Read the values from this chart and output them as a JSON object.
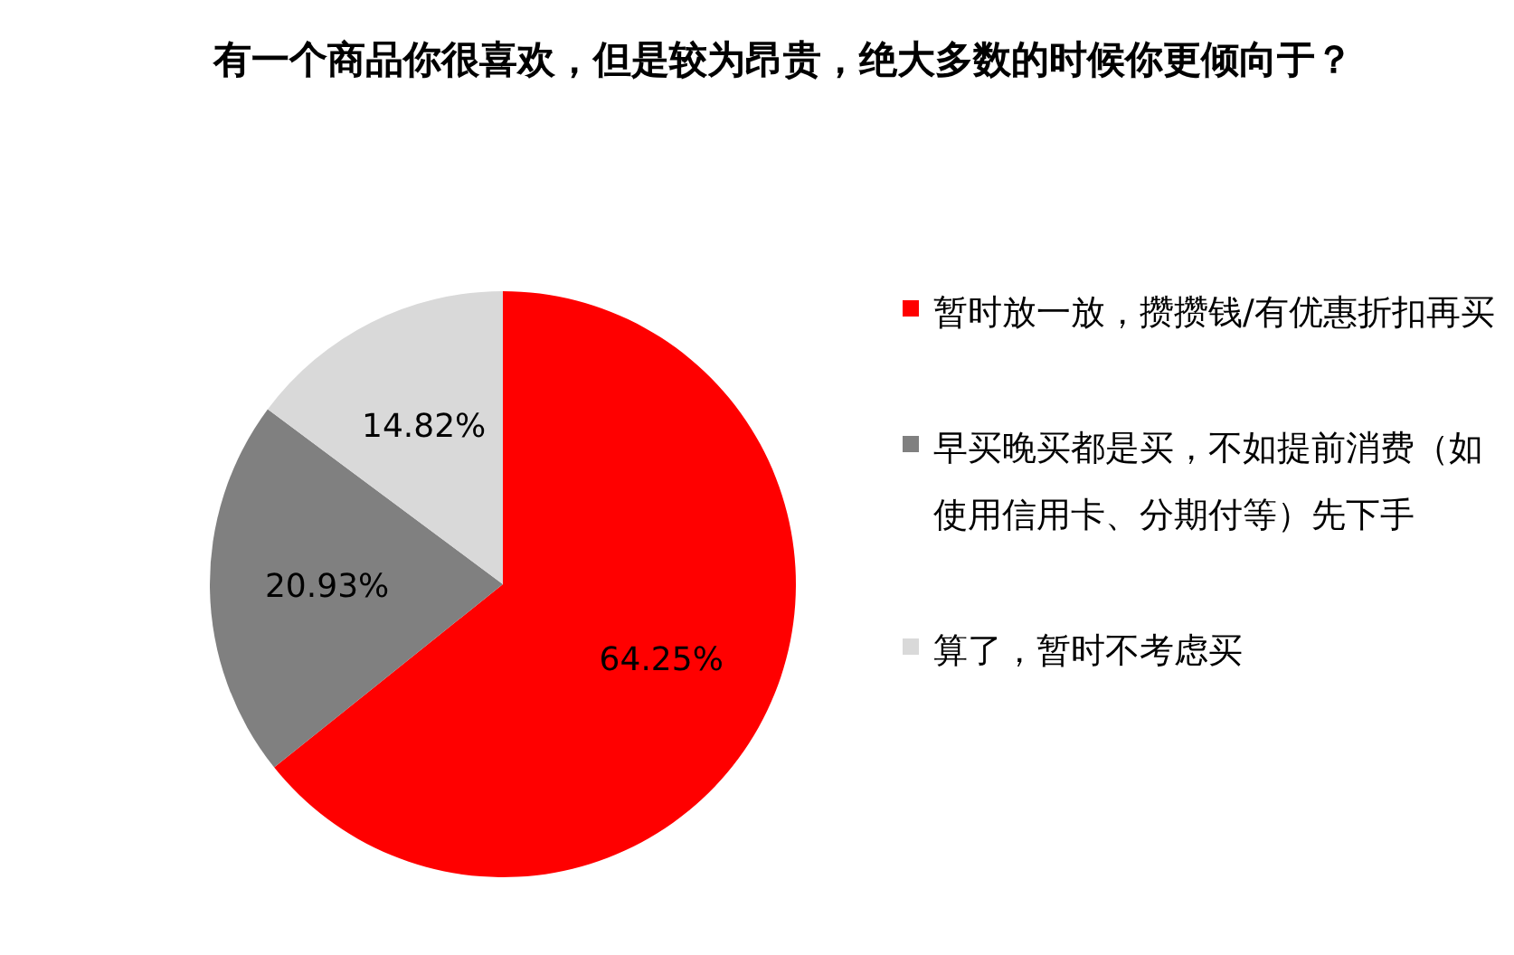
{
  "chart_data": {
    "type": "pie",
    "title": "有一个商品你很喜欢，但是较为昂贵，绝大多数的时候你更倾向于？",
    "categories": [
      "暂时放一放，攒攒钱/有优惠折扣再买",
      "早买晚买都是买，不如提前消费（如使用信用卡、分期付等）先下手",
      "算了，暂时不考虑买"
    ],
    "values": [
      64.25,
      20.93,
      14.82
    ],
    "colors": [
      "#ff0000",
      "#808080",
      "#d9d9d9"
    ],
    "value_labels": [
      "64.25%",
      "20.93%",
      "14.82%"
    ],
    "legend": "right"
  }
}
